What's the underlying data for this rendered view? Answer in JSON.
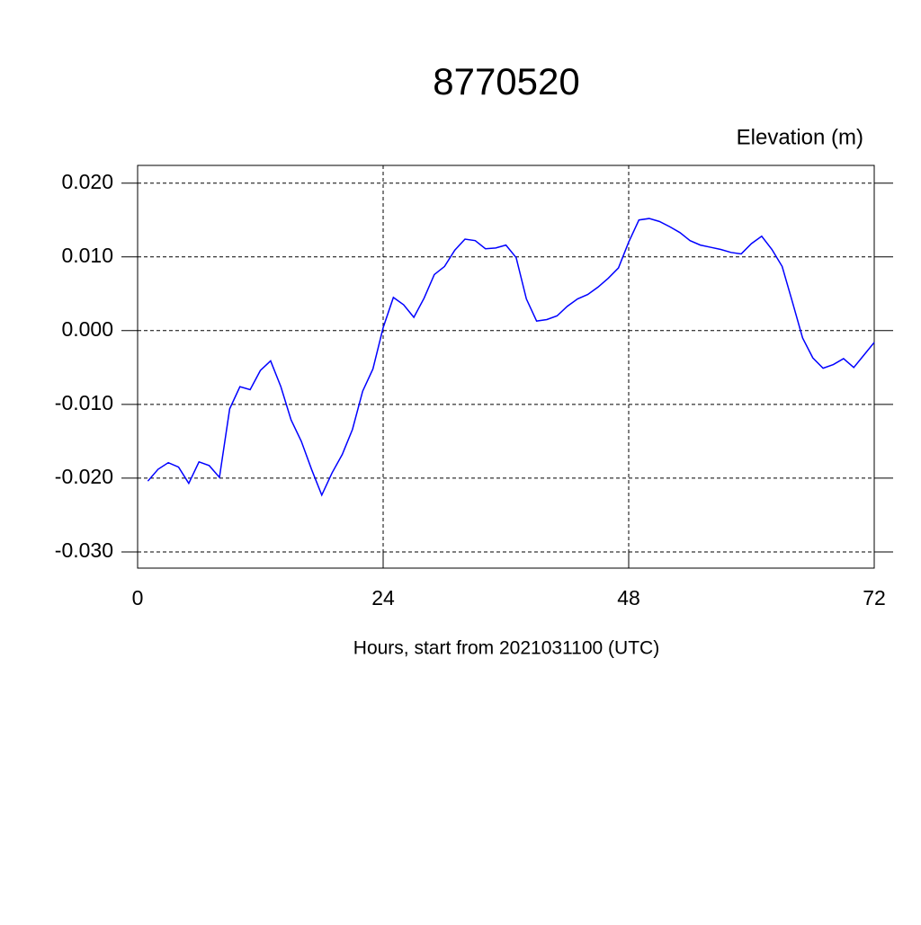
{
  "chart_data": {
    "type": "line",
    "title": "8770520",
    "subtitle": "Elevation (m)",
    "x_label": "Hours, start from 2021031100 (UTC)",
    "x": [
      1,
      2,
      3,
      4,
      5,
      6,
      7,
      8,
      9,
      10,
      11,
      12,
      13,
      14,
      15,
      16,
      17,
      18,
      19,
      20,
      21,
      22,
      23,
      24,
      25,
      26,
      27,
      28,
      29,
      30,
      31,
      32,
      33,
      34,
      35,
      36,
      37,
      38,
      39,
      40,
      41,
      42,
      43,
      44,
      45,
      46,
      47,
      48,
      49,
      50,
      51,
      52,
      53,
      54,
      55,
      56,
      57,
      58,
      59,
      60,
      61,
      62,
      63,
      64,
      65,
      66,
      67,
      68,
      69,
      70,
      71,
      72
    ],
    "series": [
      {
        "color": "#0000ff",
        "values": [
          -0.0204,
          -0.0188,
          -0.0179,
          -0.0185,
          -0.0207,
          -0.0178,
          -0.0183,
          -0.0199,
          -0.0106,
          -0.0076,
          -0.008,
          -0.0054,
          -0.0041,
          -0.0076,
          -0.0121,
          -0.015,
          -0.0188,
          -0.0223,
          -0.0193,
          -0.0168,
          -0.0134,
          -0.0082,
          -0.0052,
          0.0004,
          0.0045,
          0.0035,
          0.0018,
          0.0044,
          0.0076,
          0.0087,
          0.0109,
          0.0124,
          0.0122,
          0.0111,
          0.0112,
          0.0116,
          0.0099,
          0.0043,
          0.0013,
          0.0015,
          0.002,
          0.0033,
          0.0043,
          0.0049,
          0.0059,
          0.0071,
          0.0085,
          0.012,
          0.015,
          0.0152,
          0.0148,
          0.0141,
          0.0133,
          0.0122,
          0.0116,
          0.0113,
          0.011,
          0.0106,
          0.0104,
          0.0118,
          0.0128,
          0.011,
          0.0087,
          0.0039,
          -0.001,
          -0.0037,
          -0.0051,
          -0.0046,
          -0.0038,
          -0.005,
          -0.0033,
          -0.0016
        ]
      }
    ],
    "xlim": [
      0,
      72
    ],
    "xticks": [
      0,
      24,
      48,
      72
    ],
    "ylim": [
      -0.0322,
      0.0224
    ],
    "yticks": [
      {
        "value": -0.03,
        "label": "-0.030"
      },
      {
        "value": -0.02,
        "label": "-0.020"
      },
      {
        "value": -0.01,
        "label": "-0.010"
      },
      {
        "value": 0,
        "label": "0.000"
      },
      {
        "value": 0.01,
        "label": "0.010"
      },
      {
        "value": 0.02,
        "label": "0.020"
      }
    ],
    "grid": true
  }
}
